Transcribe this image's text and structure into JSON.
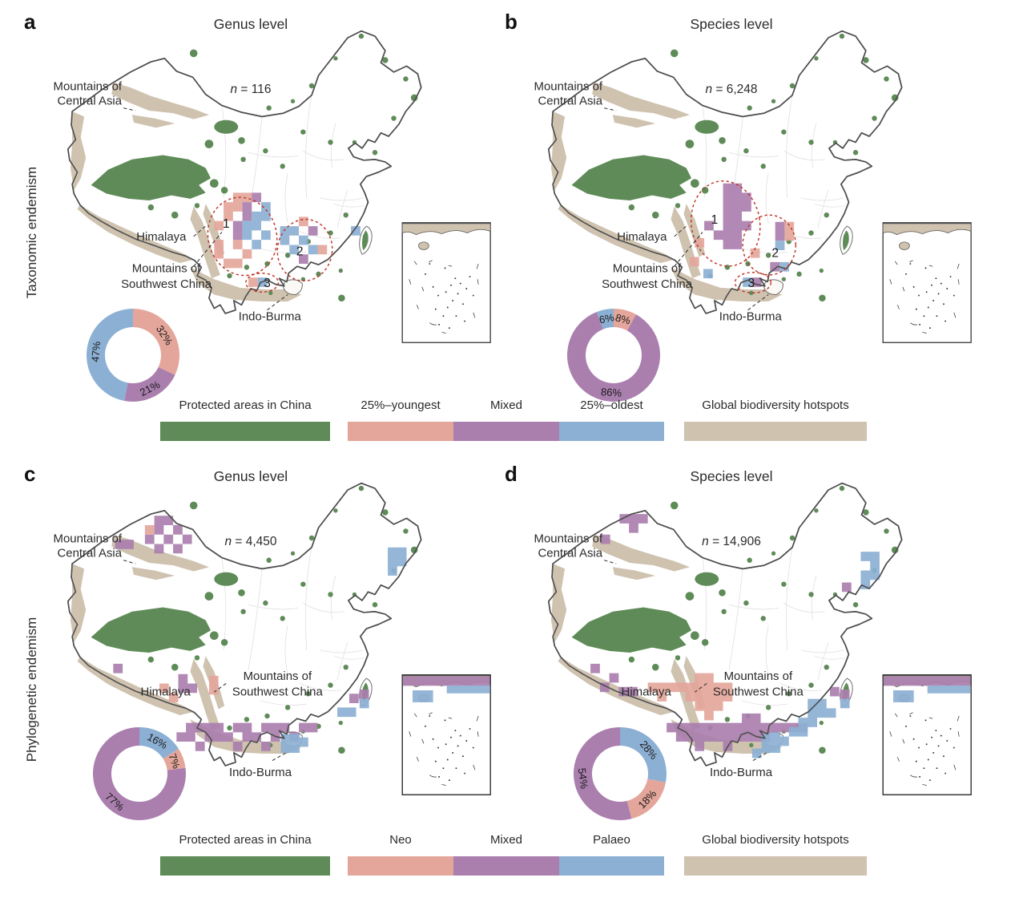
{
  "figure": {
    "row_labels": [
      "Taxonomic endemism",
      "Phylogenetic endemism"
    ],
    "n_symbol": "n"
  },
  "panels": [
    {
      "letter": "a",
      "title": "Genus level",
      "n_value": "= 116"
    },
    {
      "letter": "b",
      "title": "Species level",
      "n_value": "= 6,248"
    },
    {
      "letter": "c",
      "title": "Genus level",
      "n_value": "= 4,450"
    },
    {
      "letter": "d",
      "title": "Species level",
      "n_value": "= 14,906"
    }
  ],
  "map_labels": {
    "central_asia_line1": "Mountains of",
    "central_asia_line2": "Central Asia",
    "himalaya": "Himalaya",
    "southwest_line1": "Mountains of",
    "southwest_line2": "Southwest China",
    "indo_burma": "Indo-Burma",
    "region_numbers": [
      "1",
      "2",
      "3"
    ]
  },
  "legend_top": {
    "protected": "Protected areas in China",
    "youngest": "25%–youngest",
    "mixed": "Mixed",
    "oldest": "25%–oldest",
    "hotspots": "Global biodiversity hotspots"
  },
  "legend_bottom": {
    "protected": "Protected areas in China",
    "neo": "Neo",
    "mixed": "Mixed",
    "palaeo": "Palaeo",
    "hotspots": "Global biodiversity hotspots"
  },
  "colors": {
    "protected": "#5e8b57",
    "young": "#e4a69b",
    "mixed": "#aa7fae",
    "old": "#8cb0d4",
    "hotspot": "#cfc2af",
    "region_outline": "#c0392b"
  },
  "chart_data": [
    {
      "type": "pie",
      "panel": "a",
      "subject": "Taxonomic endemism",
      "level": "Genus level",
      "n": 116,
      "slices": [
        {
          "label": "32%",
          "value": 32,
          "color_key": "young",
          "category": "25%-youngest"
        },
        {
          "label": "21%",
          "value": 21,
          "color_key": "mixed",
          "category": "Mixed"
        },
        {
          "label": "47%",
          "value": 47,
          "color_key": "old",
          "category": "25%-oldest"
        }
      ]
    },
    {
      "type": "pie",
      "panel": "b",
      "subject": "Taxonomic endemism",
      "level": "Species level",
      "n": 6248,
      "slices": [
        {
          "label": "8%",
          "value": 8,
          "color_key": "young",
          "category": "25%-youngest"
        },
        {
          "label": "86%",
          "value": 86,
          "color_key": "mixed",
          "category": "Mixed"
        },
        {
          "label": "6%",
          "value": 6,
          "color_key": "old",
          "category": "25%-oldest"
        }
      ]
    },
    {
      "type": "pie",
      "panel": "c",
      "subject": "Phylogenetic endemism",
      "level": "Genus level",
      "n": 4450,
      "slices": [
        {
          "label": "16%",
          "value": 16,
          "color_key": "old",
          "category": "Palaeo"
        },
        {
          "label": "7%",
          "value": 7,
          "color_key": "young",
          "category": "Neo"
        },
        {
          "label": "77%",
          "value": 77,
          "color_key": "mixed",
          "category": "Mixed"
        }
      ]
    },
    {
      "type": "pie",
      "panel": "d",
      "subject": "Phylogenetic endemism",
      "level": "Species level",
      "n": 14906,
      "slices": [
        {
          "label": "28%",
          "value": 28,
          "color_key": "old",
          "category": "Palaeo"
        },
        {
          "label": "18%",
          "value": 18,
          "color_key": "young",
          "category": "Neo"
        },
        {
          "label": "54%",
          "value": 54,
          "color_key": "mixed",
          "category": "Mixed"
        }
      ]
    }
  ]
}
